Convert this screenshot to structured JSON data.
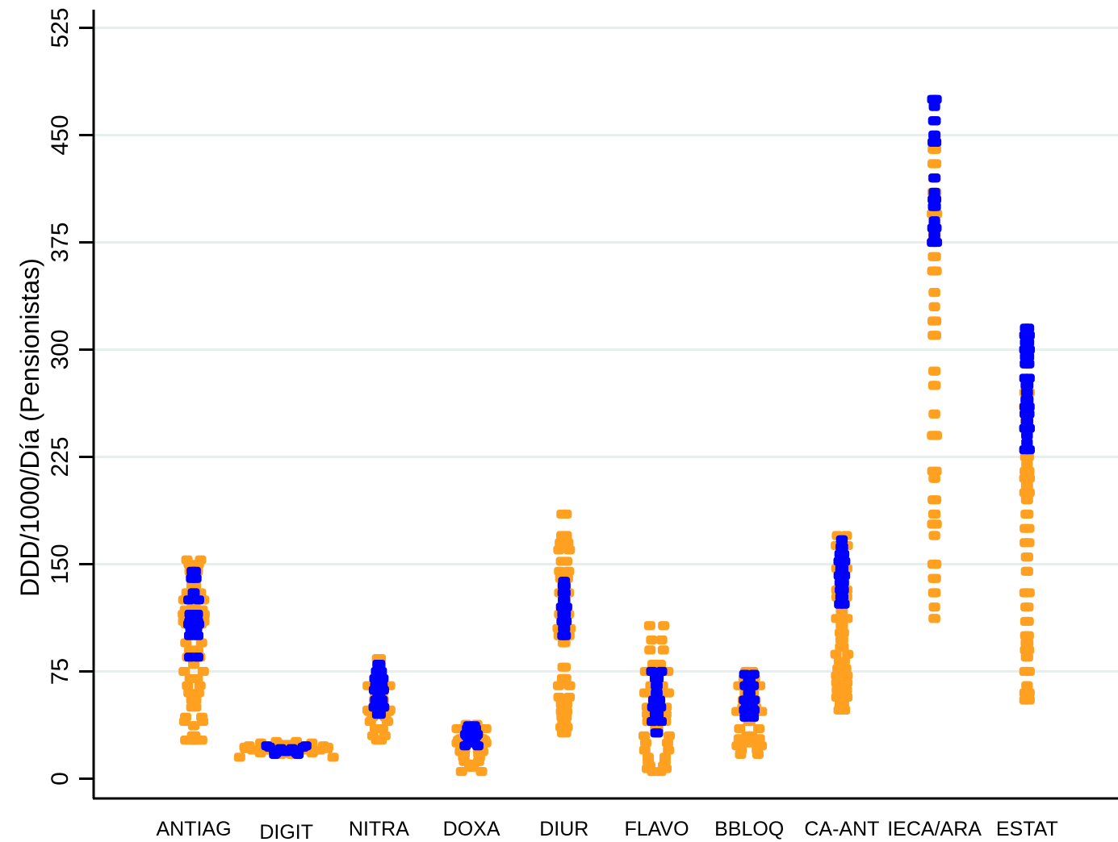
{
  "chart_data": {
    "type": "scatter",
    "title": "",
    "xlabel": "",
    "ylabel": "DDD/1000/Día (Pensionistas)",
    "ylim": [
      0,
      540
    ],
    "yticks": [
      0,
      75,
      150,
      225,
      300,
      375,
      450,
      525
    ],
    "grid": "horizontal",
    "categories": [
      "ANTIAG",
      "DIGIT",
      "NITRA",
      "DOXA",
      "DIUR",
      "FLAVO",
      "BBLOQ",
      "CA-ANT",
      "IECA/ARA",
      "ESTAT"
    ],
    "colors": {
      "orange_series": "#FFA020",
      "blue_series": "#0000FF",
      "grid": "#E6EEEE",
      "axis": "#000000"
    },
    "groups": [
      {
        "category": "ANTIAG",
        "spread": 0.25,
        "orange": [
          27,
          27,
          27,
          27,
          30,
          37,
          40,
          43,
          50,
          55,
          60,
          65,
          70,
          75,
          80,
          85,
          90,
          95,
          100,
          105,
          108,
          110,
          112,
          115,
          118,
          120,
          125,
          130,
          135,
          140,
          145,
          150,
          153
        ],
        "blue": [
          85,
          100,
          103,
          105,
          107,
          108,
          110,
          112,
          115,
          125,
          130,
          140,
          145
        ]
      },
      {
        "category": "DIGIT",
        "spread": 1.05,
        "orange": [
          15,
          17,
          18,
          19,
          20,
          20,
          20,
          21,
          21,
          21,
          22,
          22,
          23,
          24,
          25,
          26
        ],
        "blue": [
          17,
          18,
          19,
          20,
          21,
          22,
          23
        ]
      },
      {
        "category": "NITRA",
        "spread": 0.26,
        "orange": [
          27,
          30,
          35,
          40,
          43,
          45,
          47,
          48,
          50,
          55,
          60,
          65,
          70,
          75,
          80,
          84
        ],
        "blue": [
          45,
          50,
          55,
          60,
          62,
          65,
          70,
          75,
          80
        ]
      },
      {
        "category": "DOXA",
        "spread": 0.33,
        "orange": [
          5,
          8,
          10,
          12,
          15,
          17,
          19,
          20,
          22,
          24,
          25,
          27,
          28,
          29,
          30,
          32,
          35,
          38
        ],
        "blue": [
          23,
          25,
          27,
          29,
          30,
          31,
          33,
          35,
          37
        ]
      },
      {
        "category": "DIUR",
        "spread": 0.13,
        "orange": [
          32,
          36,
          40,
          43,
          47,
          52,
          57,
          65,
          70,
          78,
          95,
          100,
          105,
          110,
          115,
          120,
          125,
          130,
          140,
          145,
          152,
          160,
          165,
          170,
          185
        ],
        "blue": [
          100,
          105,
          110,
          115,
          120,
          125,
          130,
          135,
          138
        ]
      },
      {
        "category": "FLAVO",
        "spread": 0.29,
        "orange": [
          5,
          7,
          9,
          12,
          15,
          20,
          25,
          30,
          35,
          40,
          45,
          50,
          55,
          60,
          65,
          70,
          75,
          80,
          90,
          97,
          107
        ],
        "blue": [
          32,
          40,
          45,
          50,
          55,
          60,
          65,
          70,
          73,
          75
        ]
      },
      {
        "category": "BBLOQ",
        "spread": 0.27,
        "orange": [
          17,
          20,
          23,
          25,
          28,
          30,
          35,
          40,
          44,
          47,
          50,
          52,
          55,
          60,
          65,
          70,
          75
        ],
        "blue": [
          43,
          45,
          48,
          50,
          55,
          60,
          65,
          70,
          73
        ]
      },
      {
        "category": "CA-ANT",
        "spread": 0.14,
        "orange": [
          48,
          52,
          57,
          62,
          67,
          72,
          77,
          82,
          87,
          92,
          97,
          102,
          107,
          112,
          117,
          122,
          127,
          132,
          137,
          142,
          147,
          152,
          157,
          163,
          170
        ],
        "blue": [
          122,
          127,
          132,
          137,
          142,
          145,
          147,
          152,
          157,
          162,
          167
        ]
      },
      {
        "category": "IECA/ARA",
        "spread": 0.05,
        "orange": [
          112,
          120,
          130,
          140,
          150,
          170,
          178,
          185,
          195,
          210,
          215,
          240,
          255,
          275,
          285,
          310,
          320,
          330,
          340,
          355,
          365,
          375,
          380,
          385,
          395,
          400,
          410,
          420,
          430,
          440,
          450,
          460
        ],
        "blue": [
          375,
          380,
          385,
          390,
          400,
          405,
          410,
          420,
          445,
          450,
          460,
          470,
          475
        ]
      },
      {
        "category": "ESTAT",
        "spread": 0.06,
        "orange": [
          55,
          60,
          65,
          75,
          85,
          90,
          95,
          100,
          110,
          120,
          130,
          145,
          155,
          165,
          175,
          185,
          195,
          200,
          205,
          210,
          215,
          220,
          225,
          230,
          240,
          250,
          260,
          270,
          290,
          300,
          310
        ],
        "blue": [
          230,
          235,
          240,
          245,
          250,
          255,
          260,
          265,
          270,
          275,
          280,
          290,
          295,
          300,
          305,
          310,
          315
        ]
      }
    ]
  }
}
